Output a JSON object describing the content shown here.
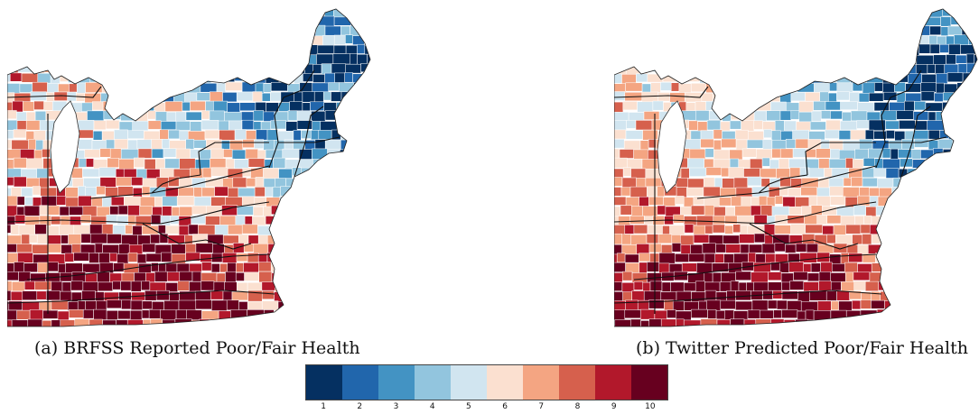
{
  "panels": [
    {
      "id": "a",
      "caption": "(a) BRFSS Reported Poor/Fair Health"
    },
    {
      "id": "b",
      "caption": "(b) Twitter Predicted Poor/Fair Health"
    }
  ],
  "legend": {
    "labels": [
      "1",
      "2",
      "3",
      "4",
      "5",
      "6",
      "7",
      "8",
      "9",
      "10"
    ],
    "colors": [
      "#053061",
      "#2166ac",
      "#4393c3",
      "#92c5de",
      "#d1e5f0",
      "#fbe0d0",
      "#f4a582",
      "#d6604d",
      "#b2182b",
      "#67001f"
    ]
  }
}
